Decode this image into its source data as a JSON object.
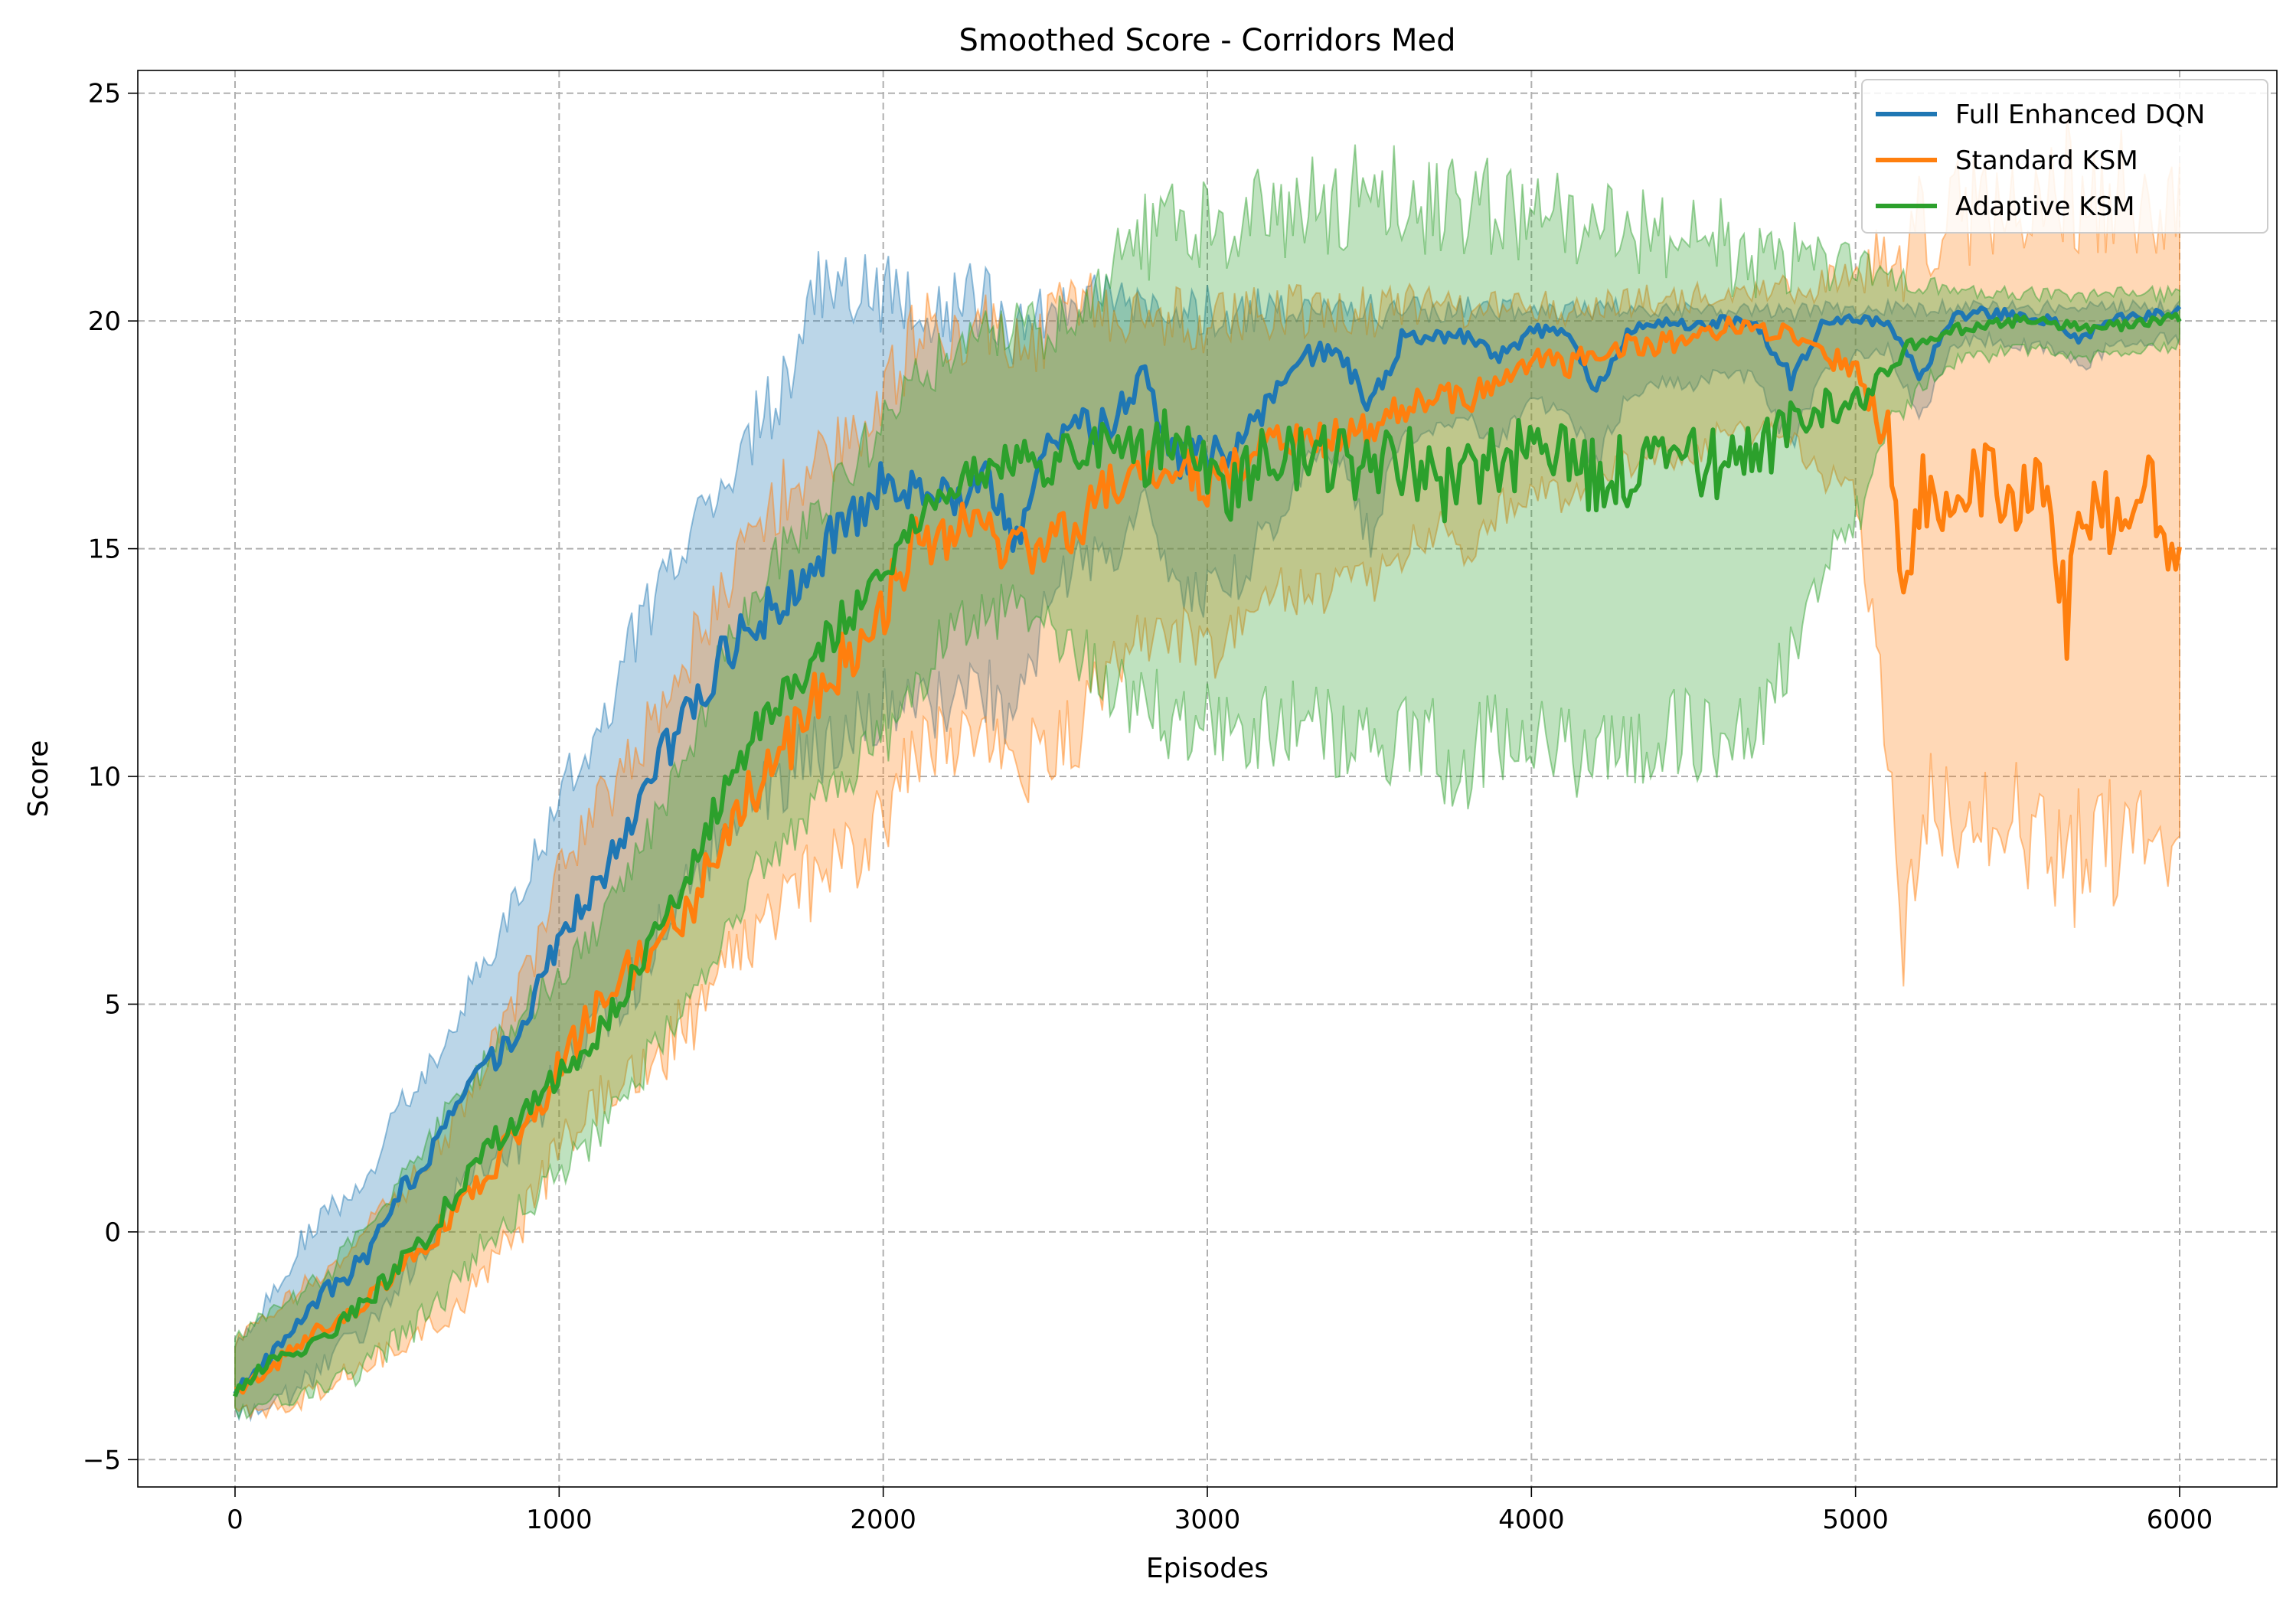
{
  "chart_data": {
    "type": "line",
    "title": "Smoothed Score - Corridors Med",
    "xlabel": "Episodes",
    "ylabel": "Score",
    "xlim": [
      -300,
      6300
    ],
    "ylim": [
      -5.6,
      25.5
    ],
    "xticks": [
      0,
      1000,
      2000,
      3000,
      4000,
      5000,
      6000
    ],
    "yticks": [
      -5,
      0,
      5,
      10,
      15,
      20,
      25
    ],
    "xtick_labels": [
      "0",
      "1000",
      "2000",
      "3000",
      "4000",
      "5000",
      "6000"
    ],
    "ytick_labels": [
      "−5",
      "0",
      "5",
      "10",
      "15",
      "20",
      "25"
    ],
    "grid": true,
    "grid_style": "dashed",
    "legend_position": "top-right",
    "band": "shaded band around each series",
    "series": [
      {
        "name": "Full Enhanced DQN",
        "color": "#1f77b4",
        "x": [
          0,
          100,
          200,
          300,
          400,
          500,
          600,
          700,
          800,
          900,
          1000,
          1100,
          1200,
          1300,
          1400,
          1500,
          1600,
          1700,
          1800,
          1900,
          2000,
          2100,
          2200,
          2300,
          2400,
          2500,
          2600,
          2700,
          2800,
          2900,
          3000,
          3100,
          3200,
          3300,
          3400,
          3500,
          3600,
          3700,
          3800,
          3900,
          4000,
          4100,
          4200,
          4300,
          4400,
          4500,
          4600,
          4700,
          4800,
          4900,
          5000,
          5100,
          5200,
          5300,
          5400,
          5500,
          5600,
          5700,
          5800,
          5900,
          6000
        ],
        "y": [
          -3.5,
          -2.8,
          -1.8,
          -1.2,
          -0.6,
          0.8,
          1.6,
          3.0,
          3.8,
          4.8,
          6.5,
          7.4,
          8.6,
          10.2,
          11.5,
          12.6,
          13.4,
          14.0,
          14.8,
          15.4,
          16.4,
          16.5,
          15.8,
          16.9,
          14.8,
          17.4,
          17.8,
          17.6,
          18.9,
          16.9,
          17.2,
          17.2,
          18.5,
          19.2,
          19.4,
          18.1,
          19.6,
          19.6,
          19.7,
          19.2,
          19.8,
          19.8,
          18.5,
          19.8,
          20.0,
          19.9,
          20.0,
          19.9,
          18.7,
          20.0,
          20.0,
          20.0,
          18.8,
          20.1,
          20.2,
          20.1,
          20.0,
          19.6,
          20.1,
          20.1,
          20.2
        ],
        "upper": [
          -2.5,
          -1.5,
          -0.3,
          0.5,
          1.0,
          2.6,
          3.6,
          5.0,
          6.4,
          7.6,
          9.6,
          10.6,
          12.5,
          14.1,
          15.2,
          16.0,
          17.6,
          18.6,
          20.8,
          20.6,
          20.6,
          20.4,
          20.3,
          20.5,
          19.8,
          20.2,
          20.5,
          20.5,
          20.3,
          20.2,
          20.2,
          20.2,
          20.3,
          20.2,
          20.3,
          20.2,
          20.3,
          20.2,
          20.3,
          20.2,
          20.3,
          20.2,
          20.2,
          20.3,
          20.2,
          20.3,
          20.2,
          20.3,
          20.2,
          20.3,
          20.2,
          20.3,
          20.3,
          20.3,
          20.3,
          20.3,
          20.3,
          20.3,
          20.3,
          20.3,
          20.3
        ],
        "lower": [
          -4.0,
          -3.9,
          -3.4,
          -2.8,
          -2.1,
          -1.2,
          -0.4,
          1.1,
          1.6,
          2.1,
          3.6,
          4.4,
          5.2,
          6.4,
          7.6,
          8.8,
          9.4,
          10.1,
          10.6,
          11.0,
          11.7,
          11.9,
          11.5,
          12.0,
          11.0,
          13.6,
          14.8,
          14.6,
          16.2,
          14.2,
          14.0,
          14.4,
          15.6,
          16.8,
          17.1,
          15.2,
          17.4,
          17.6,
          17.9,
          17.3,
          18.2,
          18.1,
          16.9,
          18.4,
          18.7,
          18.6,
          18.9,
          18.7,
          17.2,
          18.9,
          19.2,
          19.4,
          17.9,
          19.5,
          19.6,
          19.5,
          19.4,
          19.0,
          19.5,
          19.6,
          19.6
        ]
      },
      {
        "name": "Standard KSM",
        "color": "#ff7f0e",
        "x": [
          0,
          100,
          200,
          300,
          400,
          500,
          600,
          700,
          800,
          900,
          1000,
          1100,
          1200,
          1300,
          1400,
          1500,
          1600,
          1700,
          1800,
          1900,
          2000,
          2100,
          2200,
          2300,
          2400,
          2500,
          2600,
          2700,
          2800,
          2900,
          3000,
          3100,
          3200,
          3300,
          3400,
          3500,
          3600,
          3700,
          3800,
          3900,
          4000,
          4100,
          4200,
          4300,
          4400,
          4500,
          4600,
          4700,
          4800,
          4900,
          5000,
          5100,
          5150,
          5200,
          5300,
          5400,
          5500,
          5600,
          5650,
          5700,
          5800,
          5900,
          6000
        ],
        "y": [
          -3.5,
          -3.1,
          -2.4,
          -2.0,
          -1.6,
          -0.9,
          -0.2,
          0.6,
          1.5,
          2.4,
          3.6,
          4.8,
          5.6,
          6.2,
          7.2,
          8.4,
          9.8,
          10.6,
          11.9,
          12.8,
          13.7,
          15.1,
          15.4,
          15.6,
          14.9,
          15.2,
          15.6,
          16.4,
          16.8,
          16.9,
          16.3,
          16.8,
          17.3,
          17.5,
          17.4,
          17.6,
          18.1,
          18.5,
          18.2,
          18.8,
          19.2,
          19.0,
          19.3,
          19.5,
          19.5,
          19.6,
          19.9,
          19.8,
          19.8,
          19.1,
          19.0,
          17.6,
          13.6,
          16.2,
          16.3,
          16.4,
          16.3,
          16.0,
          13.5,
          15.9,
          15.6,
          16.1,
          15.0
        ],
        "upper": [
          -2.4,
          -1.9,
          -1.2,
          -0.7,
          0.0,
          0.8,
          1.5,
          2.6,
          4.2,
          5.6,
          7.8,
          9.2,
          10.1,
          11.4,
          12.6,
          14.0,
          15.0,
          16.3,
          17.2,
          17.6,
          18.2,
          19.8,
          20.0,
          19.8,
          19.6,
          19.8,
          20.2,
          20.3,
          20.1,
          20.1,
          20.0,
          20.1,
          20.2,
          20.2,
          20.1,
          20.2,
          20.3,
          20.3,
          20.3,
          20.3,
          20.4,
          20.3,
          20.4,
          20.4,
          20.5,
          20.5,
          20.6,
          20.6,
          20.7,
          20.8,
          21.0,
          21.3,
          21.5,
          22.0,
          22.3,
          22.6,
          22.8,
          22.9,
          23.0,
          22.8,
          22.9,
          22.8,
          22.6
        ],
        "lower": [
          -4.0,
          -3.9,
          -3.7,
          -3.3,
          -2.9,
          -2.5,
          -2.2,
          -1.6,
          -0.8,
          0.4,
          1.8,
          2.6,
          3.3,
          3.8,
          4.6,
          5.6,
          6.6,
          7.2,
          7.8,
          8.2,
          9.0,
          10.6,
          10.8,
          11.0,
          10.1,
          10.6,
          11.0,
          12.5,
          13.1,
          13.2,
          12.6,
          13.2,
          13.9,
          14.2,
          14.1,
          14.3,
          14.8,
          15.4,
          15.1,
          15.8,
          16.4,
          16.1,
          16.7,
          16.9,
          17.0,
          17.1,
          17.6,
          17.5,
          17.4,
          16.6,
          16.0,
          10.5,
          6.5,
          9.5,
          9.1,
          9.3,
          9.0,
          8.6,
          7.3,
          8.7,
          8.5,
          8.8,
          8.7
        ]
      },
      {
        "name": "Adaptive KSM",
        "color": "#2ca02c",
        "x": [
          0,
          100,
          200,
          300,
          400,
          500,
          600,
          700,
          800,
          900,
          1000,
          1100,
          1200,
          1300,
          1400,
          1500,
          1600,
          1700,
          1800,
          1900,
          2000,
          2100,
          2200,
          2300,
          2400,
          2500,
          2600,
          2700,
          2800,
          2900,
          3000,
          3100,
          3200,
          3300,
          3400,
          3500,
          3600,
          3700,
          3800,
          3900,
          4000,
          4100,
          4200,
          4300,
          4400,
          4500,
          4600,
          4700,
          4800,
          4900,
          5000,
          5100,
          5200,
          5300,
          5400,
          5500,
          5600,
          5700,
          5800,
          5900,
          6000
        ],
        "y": [
          -3.5,
          -2.9,
          -2.6,
          -2.2,
          -1.6,
          -0.8,
          0.0,
          1.0,
          2.0,
          2.7,
          3.4,
          4.2,
          5.2,
          6.6,
          7.8,
          9.6,
          11.0,
          11.8,
          12.8,
          13.6,
          14.2,
          15.4,
          16.4,
          16.6,
          17.0,
          16.8,
          17.2,
          17.4,
          17.1,
          17.4,
          16.6,
          16.4,
          17.0,
          17.0,
          16.9,
          16.7,
          16.9,
          16.5,
          16.4,
          16.9,
          17.1,
          16.9,
          16.6,
          16.7,
          16.9,
          17.0,
          16.8,
          17.0,
          17.6,
          18.0,
          18.2,
          19.0,
          19.6,
          19.8,
          19.9,
          20.0,
          20.0,
          19.8,
          19.9,
          20.0,
          20.1
        ],
        "upper": [
          -2.4,
          -1.8,
          -1.4,
          -0.8,
          0.1,
          1.0,
          2.0,
          3.1,
          4.0,
          4.9,
          5.7,
          6.5,
          7.5,
          9.1,
          10.4,
          12.6,
          14.0,
          15.0,
          16.0,
          16.8,
          17.6,
          18.6,
          19.4,
          19.6,
          20.0,
          19.8,
          20.2,
          21.0,
          21.8,
          22.0,
          22.2,
          22.2,
          22.4,
          22.5,
          22.6,
          22.8,
          22.7,
          22.6,
          22.5,
          22.4,
          22.3,
          22.2,
          22.0,
          21.9,
          21.8,
          21.7,
          21.6,
          21.5,
          21.4,
          21.3,
          21.2,
          21.0,
          20.8,
          20.7,
          20.6,
          20.6,
          20.6,
          20.5,
          20.6,
          20.6,
          20.6
        ],
        "lower": [
          -4.0,
          -3.8,
          -3.6,
          -3.4,
          -3.0,
          -2.4,
          -1.8,
          -0.9,
          0.0,
          0.6,
          1.2,
          2.0,
          2.8,
          4.1,
          5.2,
          6.6,
          7.8,
          8.5,
          9.4,
          10.2,
          10.8,
          12.0,
          13.2,
          13.4,
          13.8,
          13.2,
          12.6,
          12.0,
          11.4,
          11.2,
          11.0,
          10.8,
          11.2,
          11.0,
          10.8,
          10.6,
          10.8,
          10.6,
          10.4,
          10.8,
          11.0,
          10.8,
          10.4,
          10.6,
          10.8,
          10.9,
          10.6,
          10.9,
          12.8,
          14.4,
          15.6,
          17.6,
          18.6,
          19.1,
          19.2,
          19.4,
          19.4,
          19.2,
          19.3,
          19.4,
          19.5
        ]
      }
    ]
  }
}
